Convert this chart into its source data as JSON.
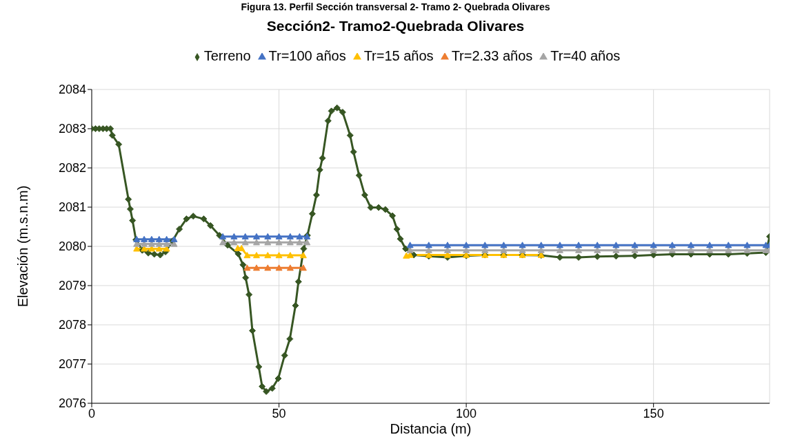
{
  "chart_data": {
    "type": "line",
    "title": "Sección2- Tramo2-Quebrada Olivares",
    "annotations": [
      "Figura 13. Perfil Sección transversal 2- Tramo 2- Quebrada Olivares"
    ],
    "xlabel": "Distancia (m)",
    "ylabel": "Elevación (m.s.n.m)",
    "xlim": [
      0,
      181
    ],
    "xticks": [
      0,
      50,
      100,
      150
    ],
    "ylim": [
      2076,
      2084
    ],
    "yticks": [
      2076,
      2077,
      2078,
      2079,
      2080,
      2081,
      2082,
      2083,
      2084
    ],
    "grid": true,
    "legend": "top",
    "line_style": "solid",
    "series": [
      {
        "name": "Terreno",
        "color": "#375623",
        "marker": "diamond",
        "x": [
          0,
          1,
          2,
          3,
          4,
          5,
          5.5,
          7.2,
          9.8,
          10.3,
          10.9,
          11.8,
          13.5,
          15.1,
          16.7,
          18.3,
          19.7,
          21.6,
          23.4,
          25.3,
          27.1,
          29.9,
          31.7,
          34.1,
          36.3,
          39.1,
          40.4,
          41.1,
          42,
          42.9,
          44.6,
          45.5,
          46.6,
          48.2,
          49.8,
          51.5,
          52.9,
          54.4,
          55.2,
          56.6,
          57.6,
          58.9,
          60,
          60.9,
          61.6,
          63.1,
          64,
          65.5,
          67,
          69,
          69.9,
          71.4,
          72.9,
          74.5,
          76.6,
          78.4,
          80.3,
          81.5,
          82.4,
          83.8,
          86,
          90,
          95,
          100,
          105,
          110,
          115,
          120,
          125,
          130,
          135,
          140,
          145,
          150,
          155,
          160,
          165,
          170,
          175,
          180,
          181
        ],
        "values": [
          2083,
          2083,
          2083,
          2083,
          2083,
          2083,
          2082.83,
          2082.6,
          2081.2,
          2080.95,
          2080.66,
          2080.17,
          2079.9,
          2079.83,
          2079.8,
          2079.78,
          2079.86,
          2080.14,
          2080.44,
          2080.7,
          2080.77,
          2080.7,
          2080.53,
          2080.28,
          2080.03,
          2079.81,
          2079.53,
          2079.2,
          2078.77,
          2077.85,
          2076.93,
          2076.43,
          2076.3,
          2076.38,
          2076.63,
          2077.22,
          2077.64,
          2078.49,
          2079.1,
          2079.94,
          2080.28,
          2080.83,
          2081.31,
          2081.95,
          2082.25,
          2083.2,
          2083.45,
          2083.53,
          2083.42,
          2082.83,
          2082.41,
          2081.81,
          2081.31,
          2080.99,
          2080.99,
          2080.94,
          2080.78,
          2080.44,
          2080.19,
          2079.94,
          2079.78,
          2079.75,
          2079.72,
          2079.76,
          2079.78,
          2079.78,
          2079.78,
          2079.77,
          2079.72,
          2079.72,
          2079.74,
          2079.75,
          2079.76,
          2079.78,
          2079.8,
          2079.8,
          2079.8,
          2079.8,
          2079.82,
          2079.84,
          2080.25
        ]
      },
      {
        "name": "Tr=2.33 años",
        "color": "#ed7d31",
        "marker": "triangle",
        "x": [
          41.5,
          44,
          47,
          50,
          53,
          56.5
        ],
        "values": [
          2079.45,
          2079.45,
          2079.45,
          2079.45,
          2079.45,
          2079.45
        ]
      },
      {
        "name": "Tr=15 años",
        "color": "#ffc000",
        "marker": "triangle",
        "x": [
          12,
          14,
          16,
          18,
          20,
          30,
          39,
          40,
          41.5,
          44,
          47,
          50,
          53,
          56.5,
          70,
          84,
          85,
          90,
          95,
          100,
          105,
          110,
          115,
          120
        ],
        "values": [
          2079.94,
          2079.94,
          2079.94,
          2079.94,
          2079.94,
          null,
          2079.95,
          2079.95,
          2079.77,
          2079.77,
          2079.77,
          2079.77,
          2079.77,
          2079.77,
          null,
          2079.76,
          2079.78,
          2079.78,
          2079.78,
          2079.78,
          2079.78,
          2079.78,
          2079.78,
          2079.78
        ]
      },
      {
        "name": "Tr=40 años",
        "color": "#a5a5a5",
        "marker": "triangle",
        "x": [
          12,
          14,
          16,
          18,
          20,
          22,
          28,
          35,
          38,
          41,
          44,
          47,
          50,
          53,
          55.5,
          57.5,
          70,
          85,
          90,
          95,
          100,
          105,
          110,
          115,
          120,
          125,
          130,
          135,
          140,
          145,
          150,
          155,
          160,
          165,
          170,
          175,
          180,
          181
        ],
        "values": [
          2080.06,
          2080.06,
          2080.06,
          2080.06,
          2080.06,
          2080.06,
          null,
          2080.1,
          2080.1,
          2080.1,
          2080.1,
          2080.1,
          2080.1,
          2080.1,
          2080.1,
          2080.1,
          null,
          2079.9,
          2079.9,
          2079.9,
          2079.9,
          2079.9,
          2079.9,
          2079.9,
          2079.9,
          2079.9,
          2079.9,
          2079.9,
          2079.9,
          2079.9,
          2079.9,
          2079.9,
          2079.9,
          2079.9,
          2079.9,
          2079.9,
          2079.9,
          2079.9
        ]
      },
      {
        "name": "Tr=100 años",
        "color": "#4472c4",
        "marker": "triangle",
        "x": [
          12,
          14,
          16,
          18,
          20,
          22,
          28,
          35,
          38,
          41,
          44,
          47,
          50,
          53,
          55.5,
          57.5,
          70,
          85,
          90,
          95,
          100,
          105,
          110,
          115,
          120,
          125,
          130,
          135,
          140,
          145,
          150,
          155,
          160,
          165,
          170,
          175,
          180,
          181
        ],
        "values": [
          2080.18,
          2080.18,
          2080.18,
          2080.18,
          2080.18,
          2080.18,
          null,
          2080.25,
          2080.25,
          2080.25,
          2080.25,
          2080.25,
          2080.25,
          2080.25,
          2080.25,
          2080.25,
          null,
          2080.03,
          2080.03,
          2080.03,
          2080.03,
          2080.03,
          2080.03,
          2080.03,
          2080.03,
          2080.03,
          2080.03,
          2080.03,
          2080.03,
          2080.03,
          2080.03,
          2080.03,
          2080.03,
          2080.03,
          2080.03,
          2080.03,
          2080.03,
          2080.03
        ]
      }
    ]
  }
}
